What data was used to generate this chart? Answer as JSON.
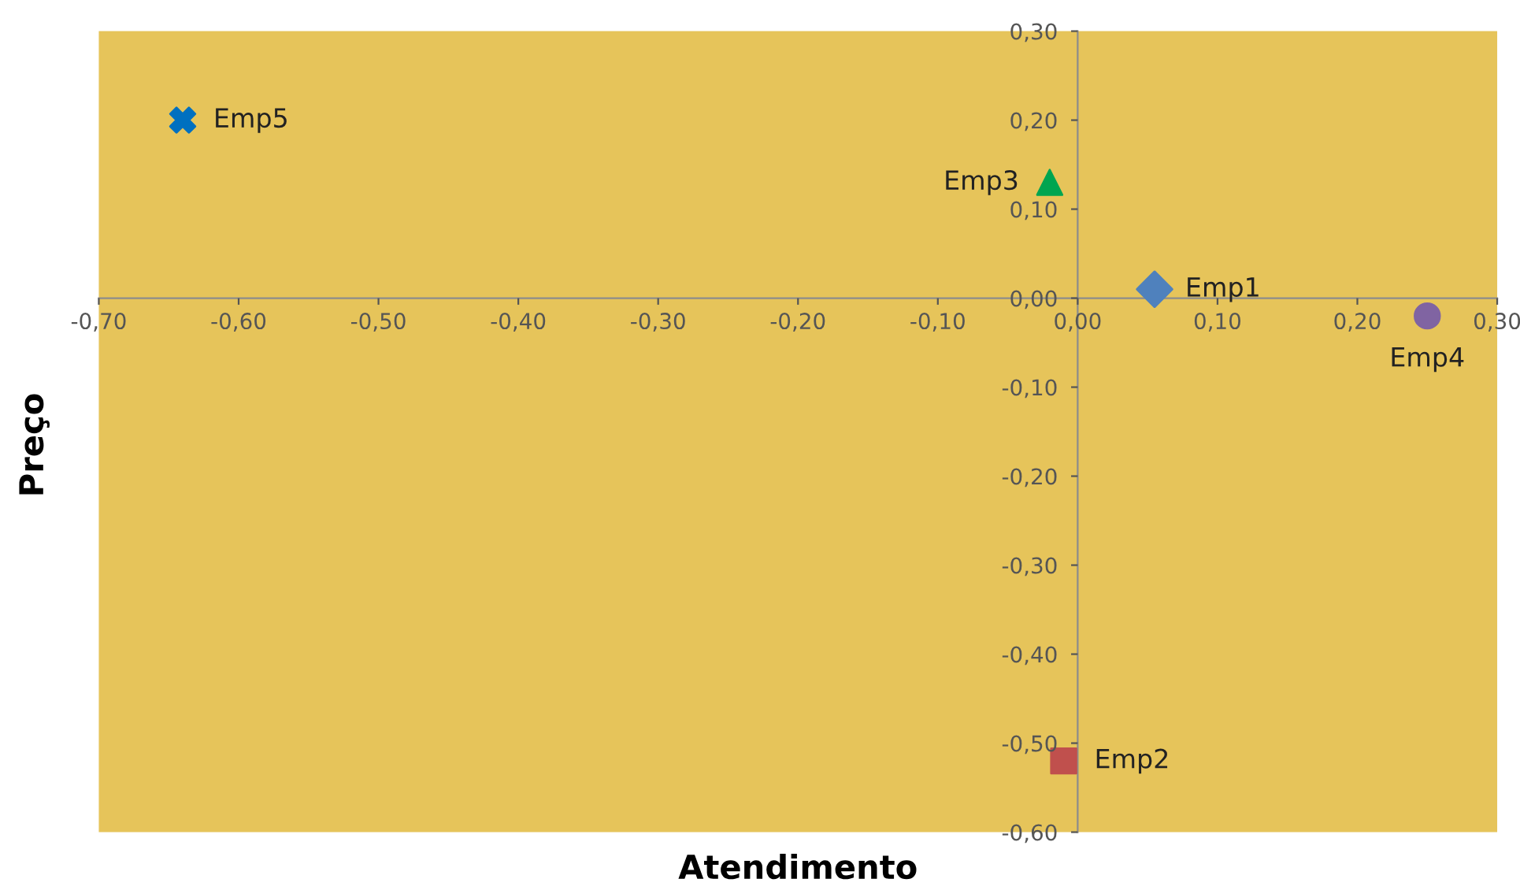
{
  "chart_data": {
    "type": "scatter",
    "xlabel": "Atendimento",
    "ylabel": "Preço",
    "series": [
      {
        "name": "Emp1",
        "color": "#4f81bd",
        "marker": "diamond",
        "x": [
          0.055
        ],
        "values": [
          0.01
        ]
      },
      {
        "name": "Emp2",
        "color": "#c0504d",
        "marker": "square",
        "x": [
          -0.01
        ],
        "values": [
          -0.52
        ]
      },
      {
        "name": "Emp3",
        "color": "#00a550",
        "marker": "triangle",
        "x": [
          -0.02
        ],
        "values": [
          0.13
        ]
      },
      {
        "name": "Emp4",
        "color": "#8064a2",
        "marker": "circle",
        "x": [
          0.25
        ],
        "values": [
          -0.02
        ]
      },
      {
        "name": "Emp5",
        "color": "#0070c0",
        "marker": "cross",
        "x": [
          -0.64
        ],
        "values": [
          0.2
        ]
      }
    ],
    "xlim": [
      -0.7,
      0.3
    ],
    "ylim": [
      -0.6,
      0.3
    ],
    "xticks": [
      {
        "value": -0.7,
        "label": "-0,70"
      },
      {
        "value": -0.6,
        "label": "-0,60"
      },
      {
        "value": -0.5,
        "label": "-0,50"
      },
      {
        "value": -0.4,
        "label": "-0,40"
      },
      {
        "value": -0.3,
        "label": "-0,30"
      },
      {
        "value": -0.2,
        "label": "-0,20"
      },
      {
        "value": -0.1,
        "label": "-0,10"
      },
      {
        "value": 0,
        "label": "0,00"
      },
      {
        "value": 0.1,
        "label": "0,10"
      },
      {
        "value": 0.2,
        "label": "0,20"
      },
      {
        "value": 0.3,
        "label": "0,30"
      }
    ],
    "yticks": [
      {
        "value": -0.6,
        "label": "-0,60"
      },
      {
        "value": -0.5,
        "label": "-0,50"
      },
      {
        "value": -0.4,
        "label": "-0,40"
      },
      {
        "value": -0.3,
        "label": "-0,30"
      },
      {
        "value": -0.2,
        "label": "-0,20"
      },
      {
        "value": -0.1,
        "label": "-0,10"
      },
      {
        "value": 0,
        "label": "0,00"
      },
      {
        "value": 0.1,
        "label": "0,10"
      },
      {
        "value": 0.2,
        "label": "0,20"
      },
      {
        "value": 0.3,
        "label": "0,30"
      }
    ],
    "grid": false,
    "legend": false
  }
}
